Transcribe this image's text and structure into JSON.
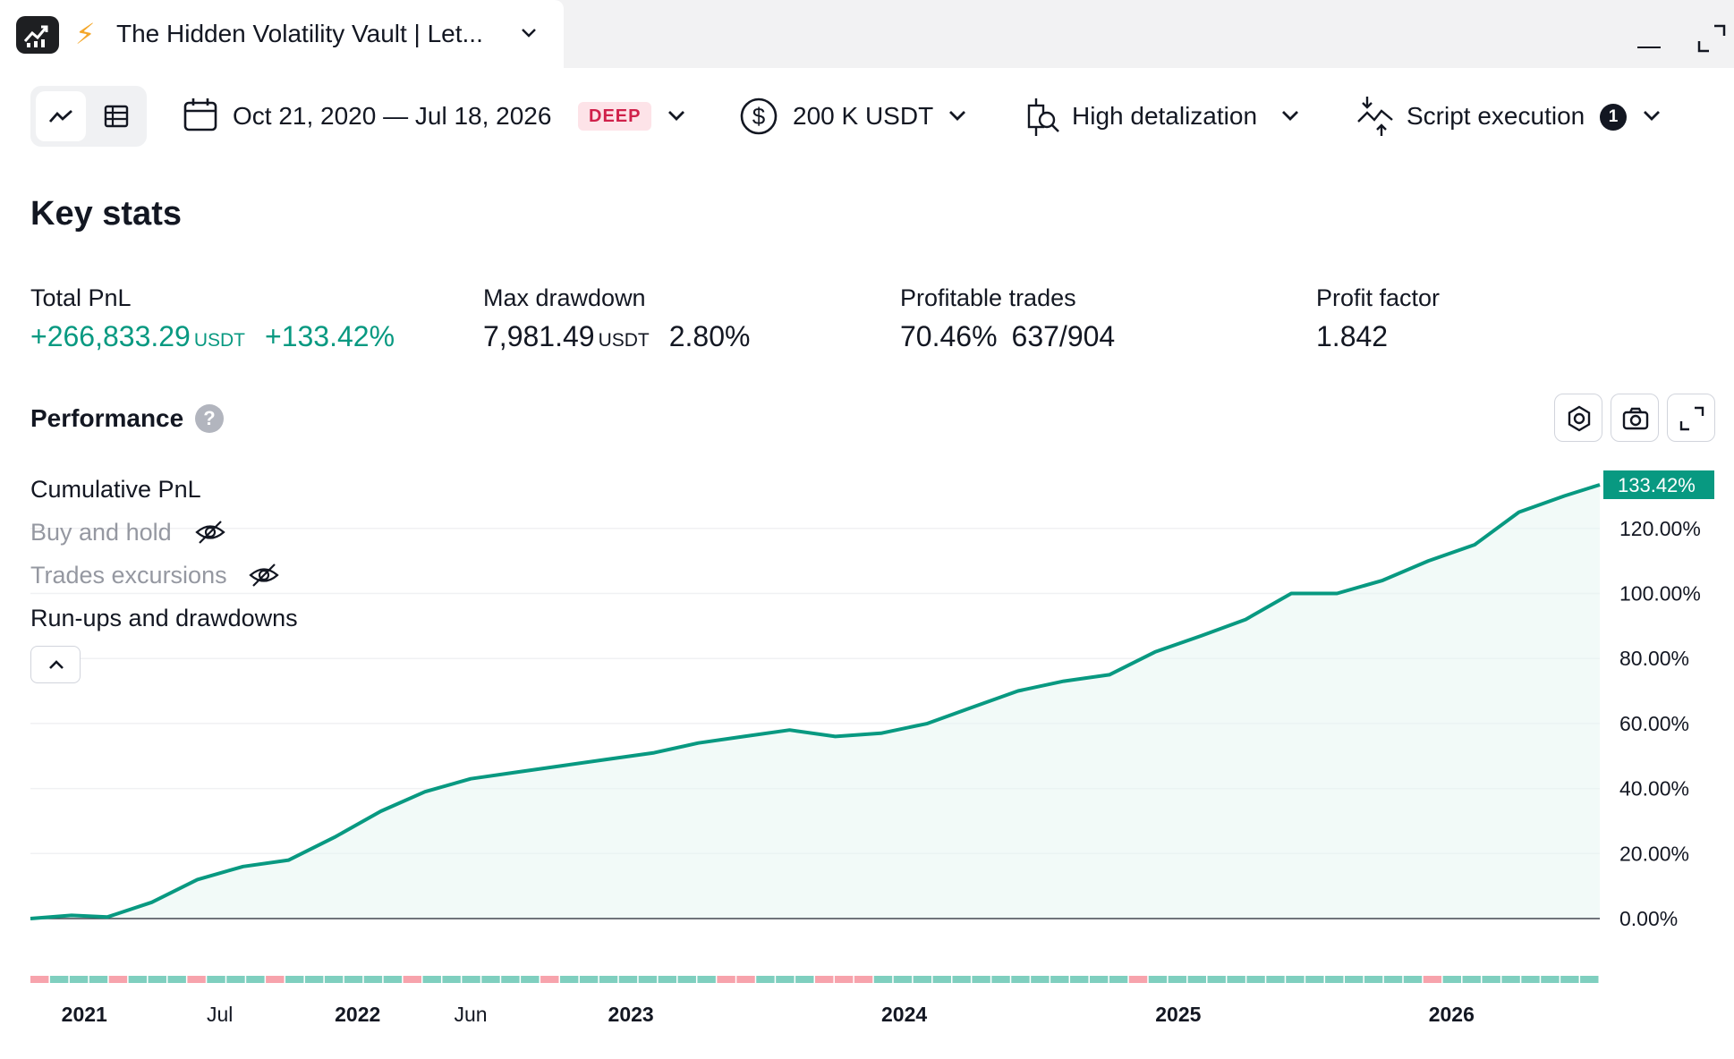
{
  "window": {
    "tab_title": "The Hidden Volatility Vault | Let...",
    "tab_icon": "bolt-icon",
    "app_icon": "chart-app-icon"
  },
  "toolbar": {
    "date_range": "Oct 21, 2020 — Jul 18, 2026",
    "deep_badge": "DEEP",
    "capital": "200 K USDT",
    "detalization": "High detalization",
    "script_execution": "Script execution",
    "script_execution_count": "1"
  },
  "key_stats": {
    "title": "Key stats",
    "total_pnl": {
      "label": "Total PnL",
      "value": "+266,833.29",
      "unit": "USDT",
      "percent": "+133.42%"
    },
    "max_drawdown": {
      "label": "Max drawdown",
      "value": "7,981.49",
      "unit": "USDT",
      "percent": "2.80%"
    },
    "profitable_trades": {
      "label": "Profitable trades",
      "percent": "70.46%",
      "ratio": "637/904"
    },
    "profit_factor": {
      "label": "Profit factor",
      "value": "1.842"
    }
  },
  "performance": {
    "title": "Performance",
    "help": "?",
    "legend": {
      "cumulative_pnl": "Cumulative PnL",
      "buy_and_hold": "Buy and hold",
      "trades_excursions": "Trades excursions",
      "runups_drawdowns": "Run-ups and drawdowns"
    }
  },
  "colors": {
    "accent_green": "#089981",
    "loss_red": "#f7a3ac",
    "win_green": "#7fcfbf",
    "deep_badge_bg": "#fde3e8",
    "deep_badge_text": "#d0214a"
  },
  "chart_data": {
    "type": "area",
    "series": [
      {
        "name": "Cumulative PnL",
        "x": [
          "2020-10-21",
          "2020-12-15",
          "2021-02-01",
          "2021-04-01",
          "2021-06-01",
          "2021-08-01",
          "2021-10-01",
          "2021-12-01",
          "2022-02-01",
          "2022-04-01",
          "2022-06-01",
          "2022-08-01",
          "2022-10-01",
          "2022-12-01",
          "2023-02-01",
          "2023-04-01",
          "2023-06-01",
          "2023-08-01",
          "2023-10-01",
          "2023-12-01",
          "2024-02-01",
          "2024-04-01",
          "2024-06-01",
          "2024-08-01",
          "2024-10-01",
          "2024-12-01",
          "2025-02-01",
          "2025-04-01",
          "2025-06-01",
          "2025-08-01",
          "2025-10-01",
          "2025-12-01",
          "2026-02-01",
          "2026-04-01",
          "2026-06-01",
          "2026-07-18"
        ],
        "values": [
          0,
          1,
          0.5,
          5,
          12,
          16,
          18,
          25,
          33,
          39,
          43,
          45,
          47,
          49,
          51,
          54,
          56,
          58,
          56,
          57,
          60,
          65,
          70,
          73,
          75,
          82,
          87,
          92,
          100,
          100,
          104,
          110,
          115,
          125,
          130,
          133.42
        ]
      }
    ],
    "y_ticks": [
      "0.00%",
      "20.00%",
      "40.00%",
      "60.00%",
      "80.00%",
      "100.00%",
      "120.00%"
    ],
    "ylim": [
      0,
      133.42
    ],
    "last_value_label": "133.42%",
    "x_ticks": [
      {
        "label": "2021",
        "date": "2021-01-01",
        "year": true
      },
      {
        "label": "Jul",
        "date": "2021-07-01",
        "year": false
      },
      {
        "label": "2022",
        "date": "2022-01-01",
        "year": true
      },
      {
        "label": "Jun",
        "date": "2022-06-01",
        "year": false
      },
      {
        "label": "2023",
        "date": "2023-01-01",
        "year": true
      },
      {
        "label": "2024",
        "date": "2024-01-01",
        "year": true
      },
      {
        "label": "2025",
        "date": "2025-01-01",
        "year": true
      },
      {
        "label": "2026",
        "date": "2026-01-01",
        "year": true
      }
    ],
    "trade_strip": [
      "loss",
      "win",
      "win",
      "win",
      "loss",
      "win",
      "win",
      "win",
      "loss",
      "win",
      "win",
      "win",
      "loss",
      "win",
      "win",
      "win",
      "win",
      "win",
      "win",
      "loss",
      "win",
      "win",
      "win",
      "win",
      "win",
      "win",
      "loss",
      "win",
      "win",
      "win",
      "win",
      "win",
      "win",
      "win",
      "win",
      "loss",
      "loss",
      "win",
      "win",
      "win",
      "loss",
      "loss",
      "loss",
      "win",
      "win",
      "win",
      "win",
      "win",
      "win",
      "win",
      "win",
      "win",
      "win",
      "win",
      "win",
      "win",
      "loss",
      "win",
      "win",
      "win",
      "win",
      "win",
      "win",
      "win",
      "win",
      "win",
      "win",
      "win",
      "win",
      "win",
      "win",
      "loss",
      "win",
      "win",
      "win",
      "win",
      "win",
      "win",
      "win",
      "win"
    ],
    "grid": true,
    "legend_position": "top-left"
  }
}
